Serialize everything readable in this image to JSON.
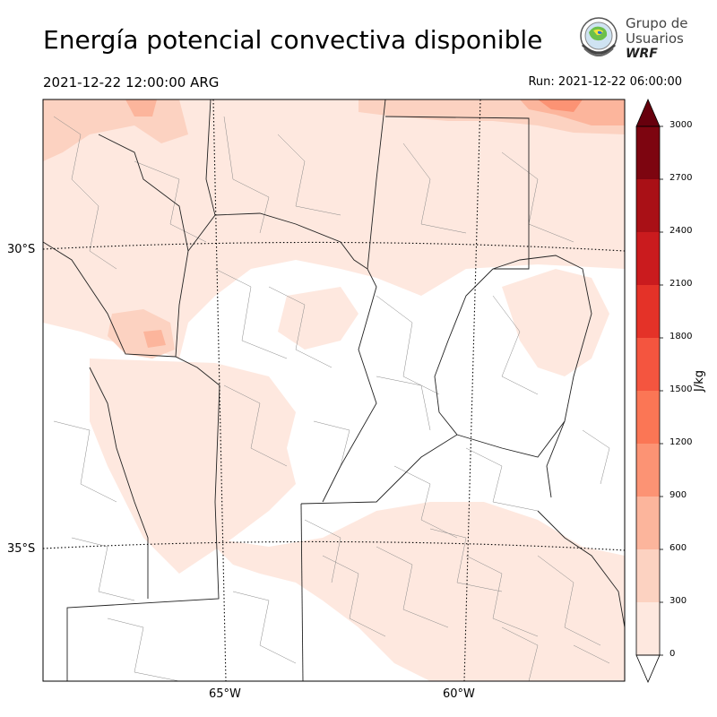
{
  "title": "Energía potencial convectiva disponible",
  "valid_time": "2021-12-22 12:00:00 ARG",
  "run_time": "Run: 2021-12-22 06:00:00",
  "logo": {
    "line1": "Grupo de",
    "line2": "Usuarios",
    "line3": "WRF"
  },
  "map": {
    "variable": "CAPE",
    "lat_labels": [
      "30°S",
      "35°S"
    ],
    "lon_labels": [
      "65°W",
      "60°W"
    ]
  },
  "colorbar": {
    "unit": "J/kg",
    "ticks": [
      "0",
      "300",
      "600",
      "900",
      "1200",
      "1500",
      "1800",
      "2100",
      "2400",
      "2700",
      "3000"
    ],
    "levels": [
      0,
      300,
      600,
      900,
      1200,
      1500,
      1800,
      2100,
      2400,
      2700,
      3000
    ],
    "colors": [
      "#fee8df",
      "#fcd2c1",
      "#fcb59c",
      "#fc9374",
      "#fb7655",
      "#f4553f",
      "#e43228",
      "#ca1b1e",
      "#a91016",
      "#7d0510"
    ],
    "over_color": "#67000d",
    "under_color": "#ffffff",
    "extend": "both"
  }
}
